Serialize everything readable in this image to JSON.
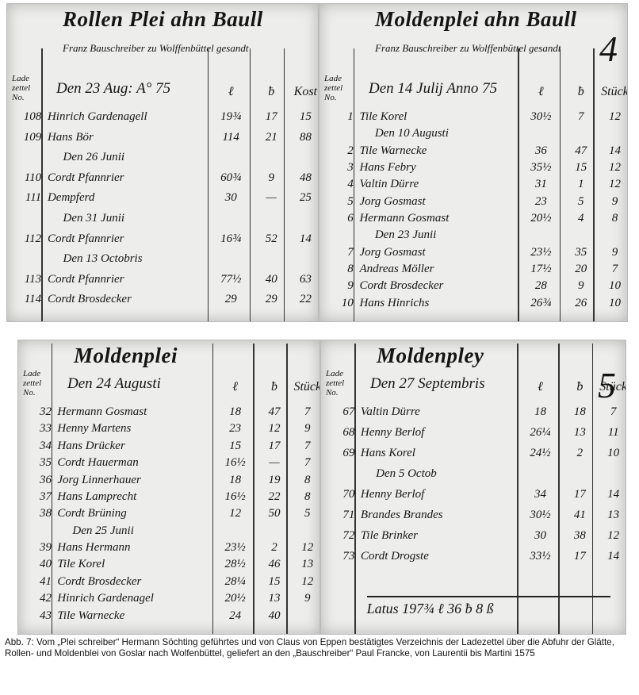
{
  "pages": [
    {
      "title": "Rollen Plei ahn Baull",
      "subtitle": "Franz Bauschreiber zu Wolffenbüttel gesandt",
      "number_label": "Lade zettel No.",
      "date": "Den 23 Aug: A° 75",
      "columns": [
        "ℓ",
        "ƀ",
        "Kost"
      ],
      "rows": [
        {
          "cells": [
            "108",
            "Hinrich Gardenagell",
            "19¾",
            "17",
            "15"
          ]
        },
        {
          "cells": [
            "109",
            "Hans Bör",
            "114",
            "21",
            "88"
          ]
        },
        {
          "sub": "Den 26 Junii"
        },
        {
          "cells": [
            "110",
            "Cordt Pfannrier",
            "60¾",
            "9",
            "48"
          ]
        },
        {
          "cells": [
            "111",
            "Dempferd",
            "30",
            "—",
            "25"
          ]
        },
        {
          "sub": "Den 31 Junii"
        },
        {
          "cells": [
            "112",
            "Cordt Pfannrier",
            "16¾",
            "52",
            "14"
          ]
        },
        {
          "sub": "Den 13 Octobris"
        },
        {
          "cells": [
            "113",
            "Cordt Pfannrier",
            "77½",
            "40",
            "63"
          ]
        },
        {
          "cells": [
            "114",
            "Cordt Brosdecker",
            "29",
            "29",
            "22"
          ]
        }
      ]
    },
    {
      "title": "Moldenplei ahn Baull",
      "subtitle": "Franz Bauschreiber zu Wolffenbüttel gesandt",
      "number_label": "Lade zettel No.",
      "date": "Den 14 Julij Anno 75",
      "columns": [
        "ℓ",
        "ƀ",
        "Stück"
      ],
      "page_number": "4",
      "rows": [
        {
          "cells": [
            "1",
            "Tile Korel",
            "30½",
            "7",
            "12"
          ]
        },
        {
          "sub": "Den 10 Augusti"
        },
        {
          "cells": [
            "2",
            "Tile Warnecke",
            "36",
            "47",
            "14"
          ]
        },
        {
          "cells": [
            "3",
            "Hans Febry",
            "35½",
            "15",
            "12"
          ]
        },
        {
          "cells": [
            "4",
            "Valtin Dürre",
            "31",
            "1",
            "12"
          ]
        },
        {
          "cells": [
            "5",
            "Jorg Gosmast",
            "23",
            "5",
            "9"
          ]
        },
        {
          "cells": [
            "6",
            "Hermann Gosmast",
            "20½",
            "4",
            "8"
          ]
        },
        {
          "sub": "Den 23 Junii"
        },
        {
          "cells": [
            "7",
            "Jorg Gosmast",
            "23½",
            "35",
            "9"
          ]
        },
        {
          "cells": [
            "8",
            "Andreas Möller",
            "17½",
            "20",
            "7"
          ]
        },
        {
          "cells": [
            "9",
            "Cordt Brosdecker",
            "28",
            "9",
            "10"
          ]
        },
        {
          "cells": [
            "10",
            "Hans Hinrichs",
            "26¾",
            "26",
            "10"
          ]
        }
      ]
    },
    {
      "title": "Moldenplei",
      "number_label": "Lade zettel No.",
      "date": "Den 24 Augusti",
      "columns": [
        "ℓ",
        "ƀ",
        "Stück"
      ],
      "rows": [
        {
          "cells": [
            "32",
            "Hermann Gosmast",
            "18",
            "47",
            "7"
          ]
        },
        {
          "cells": [
            "33",
            "Henny Martens",
            "23",
            "12",
            "9"
          ]
        },
        {
          "cells": [
            "34",
            "Hans Drücker",
            "15",
            "17",
            "7"
          ]
        },
        {
          "cells": [
            "35",
            "Cordt Hauerman",
            "16½",
            "—",
            "7"
          ]
        },
        {
          "cells": [
            "36",
            "Jorg Linnerhauer",
            "18",
            "19",
            "8"
          ]
        },
        {
          "cells": [
            "37",
            "Hans Lamprecht",
            "16½",
            "22",
            "8"
          ]
        },
        {
          "cells": [
            "38",
            "Cordt Brüning",
            "12",
            "50",
            "5"
          ]
        },
        {
          "sub": "Den 25 Junii"
        },
        {
          "cells": [
            "39",
            "Hans Hermann",
            "23½",
            "2",
            "12"
          ]
        },
        {
          "cells": [
            "40",
            "Tile Korel",
            "28½",
            "46",
            "13"
          ]
        },
        {
          "cells": [
            "41",
            "Cordt Brosdecker",
            "28¼",
            "15",
            "12"
          ]
        },
        {
          "cells": [
            "42",
            "Hinrich Gardenagel",
            "20½",
            "13",
            "9"
          ]
        },
        {
          "cells": [
            "43",
            "Tile Warnecke",
            "24",
            "40"
          ]
        }
      ]
    },
    {
      "title": "Moldenpley",
      "number_label": "Lade zettel No.",
      "date": "Den 27 Septembris",
      "columns": [
        "ℓ",
        "ƀ",
        "Stück"
      ],
      "page_number": "5",
      "rows": [
        {
          "cells": [
            "67",
            "Valtin Dürre",
            "18",
            "18",
            "7"
          ]
        },
        {
          "cells": [
            "68",
            "Henny Berlof",
            "26¼",
            "13",
            "11"
          ]
        },
        {
          "cells": [
            "69",
            "Hans Korel",
            "24½",
            "2",
            "10"
          ]
        },
        {
          "sub": "Den 5 Octob"
        },
        {
          "cells": [
            "70",
            "Henny Berlof",
            "34",
            "17",
            "14"
          ]
        },
        {
          "cells": [
            "71",
            "Brandes Brandes",
            "30½",
            "41",
            "13"
          ]
        },
        {
          "cells": [
            "72",
            "Tile Brinker",
            "30",
            "38",
            "12"
          ]
        },
        {
          "cells": [
            "73",
            "Cordt Drogste",
            "33½",
            "17",
            "14"
          ]
        }
      ],
      "total": "Latus 197¾ ℓ 36 ƀ 8 ß"
    }
  ],
  "caption": "Abb. 7: Vom „Plei schreiber“ Hermann Söchting geführtes und von Claus von Eppen bestätigtes Verzeichnis der Ladezettel über die Abfuhr der Glätte, Rollen- und Moldenblei von Goslar nach Wolfenbüttel, geliefert an den „Bauschreiber“ Paul Francke, von Laurentii bis Martini 1575"
}
